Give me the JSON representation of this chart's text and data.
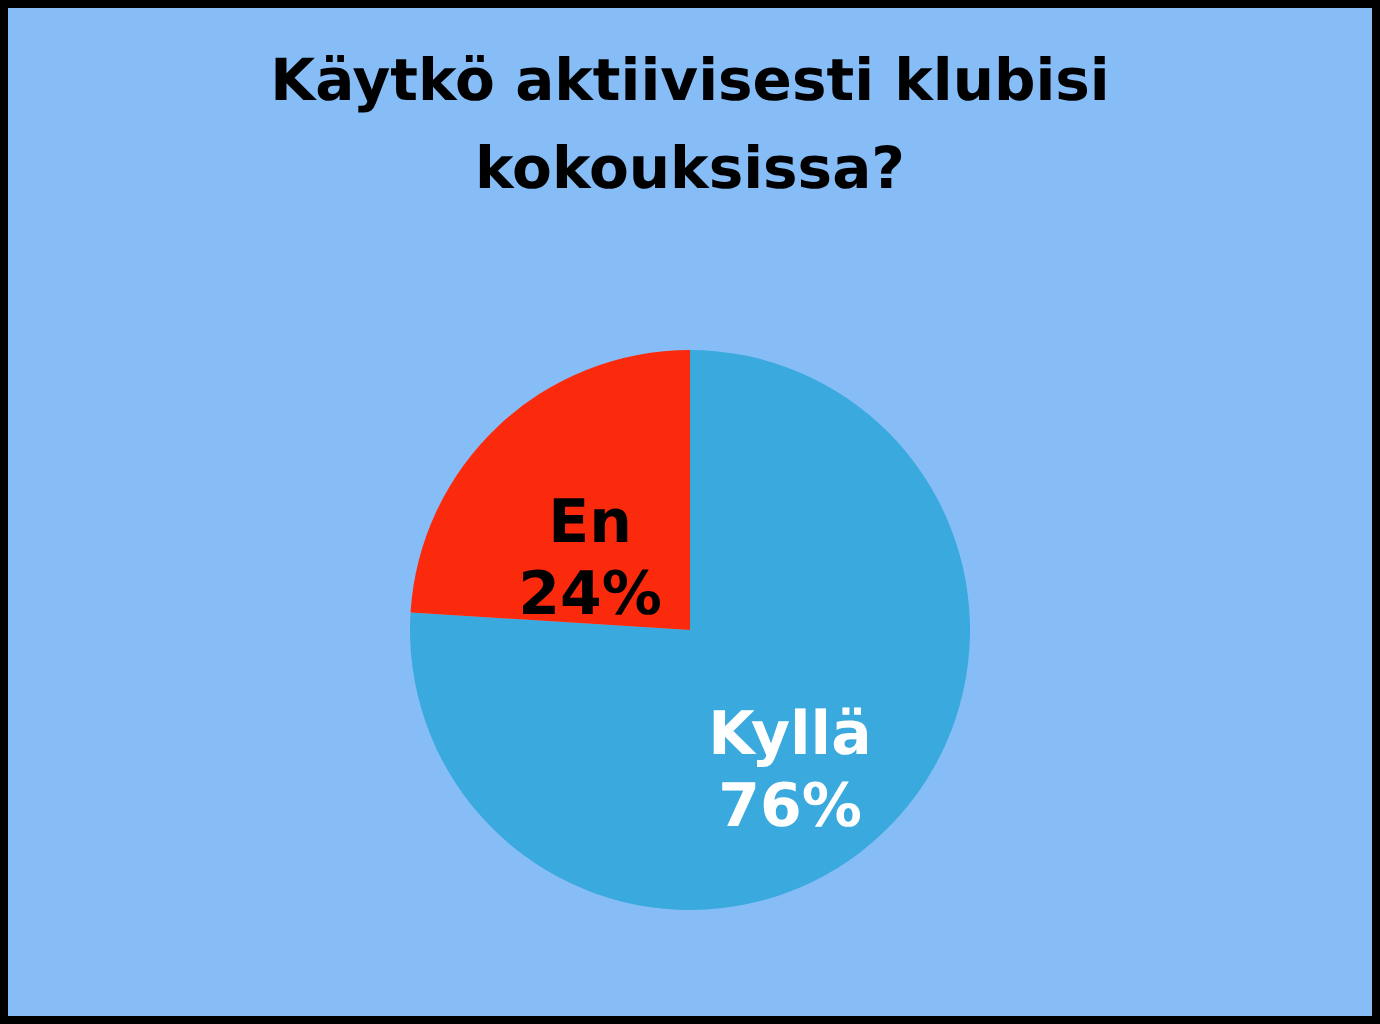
{
  "chart_data": {
    "type": "pie",
    "title": "Käytkö aktiivisesti klubisi kokouksissa?",
    "categories": [
      "Kyllä",
      "En"
    ],
    "values": [
      76,
      24
    ],
    "colors": [
      "#3aa9dd",
      "#fb2a0c"
    ],
    "value_labels": [
      "76%",
      "24%"
    ]
  }
}
